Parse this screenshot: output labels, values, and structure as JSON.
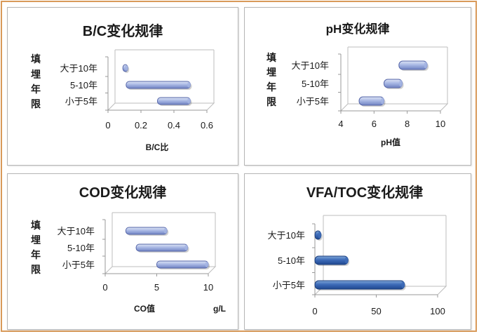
{
  "chart_data": [
    {
      "type": "bar",
      "orientation": "horizontal",
      "title": "B/C变化规律",
      "xlabel": "B/C比",
      "ylabel": "填埋年限",
      "unit": "",
      "categories": [
        "大于10年",
        "5-10年",
        "小于5年"
      ],
      "ranges": [
        [
          0.09,
          0.12
        ],
        [
          0.11,
          0.5
        ],
        [
          0.3,
          0.5
        ]
      ],
      "xlim": [
        0,
        0.6
      ],
      "xticks": [
        "0",
        "0.2",
        "0.4",
        "0.6"
      ],
      "legend": "none",
      "grid": false
    },
    {
      "type": "bar",
      "orientation": "horizontal",
      "title": "pH变化规律",
      "xlabel": "pH值",
      "ylabel": "填埋年限",
      "unit": "",
      "categories": [
        "大于10年",
        "5-10年",
        "小于5年"
      ],
      "ranges": [
        [
          7.5,
          9.2
        ],
        [
          6.6,
          7.7
        ],
        [
          5.1,
          6.6
        ]
      ],
      "xlim": [
        4,
        10
      ],
      "xticks": [
        "4",
        "6",
        "8",
        "10"
      ],
      "legend": "none",
      "grid": false
    },
    {
      "type": "bar",
      "orientation": "horizontal",
      "title": "COD变化规律",
      "xlabel": "CO值",
      "ylabel": "填埋年限",
      "unit": "g/L",
      "categories": [
        "大于10年",
        "5-10年",
        "小于5年"
      ],
      "ranges": [
        [
          2,
          6
        ],
        [
          3,
          8
        ],
        [
          5,
          10
        ]
      ],
      "xlim": [
        0,
        10
      ],
      "xticks": [
        "0",
        "5",
        "10"
      ],
      "legend": "none",
      "grid": false
    },
    {
      "type": "bar",
      "orientation": "horizontal",
      "title": "VFA/TOC变化规律",
      "xlabel": "",
      "ylabel": "",
      "unit": "",
      "categories": [
        "大于10年",
        "5-10年",
        "小于5年"
      ],
      "values": [
        5,
        27,
        73
      ],
      "xlim": [
        0,
        100
      ],
      "xticks": [
        "0",
        "50",
        "100"
      ],
      "legend": "none",
      "grid": false
    }
  ],
  "colors": {
    "frame_border": "#d99a5a",
    "panel_border": "#b5b5b5",
    "bar_light_top": "#dde4f5",
    "bar_light_mid": "#a4b4e2",
    "bar_light_bottom": "#6f82c2",
    "bar_light_stroke": "#5666a8",
    "bar_dark_top": "#7fa6d8",
    "bar_dark_mid": "#3d6bb8",
    "bar_dark_bottom": "#1f4890",
    "bar_dark_stroke": "#1d3f7c",
    "axis": "#999999",
    "text": "#1a1a1a"
  }
}
